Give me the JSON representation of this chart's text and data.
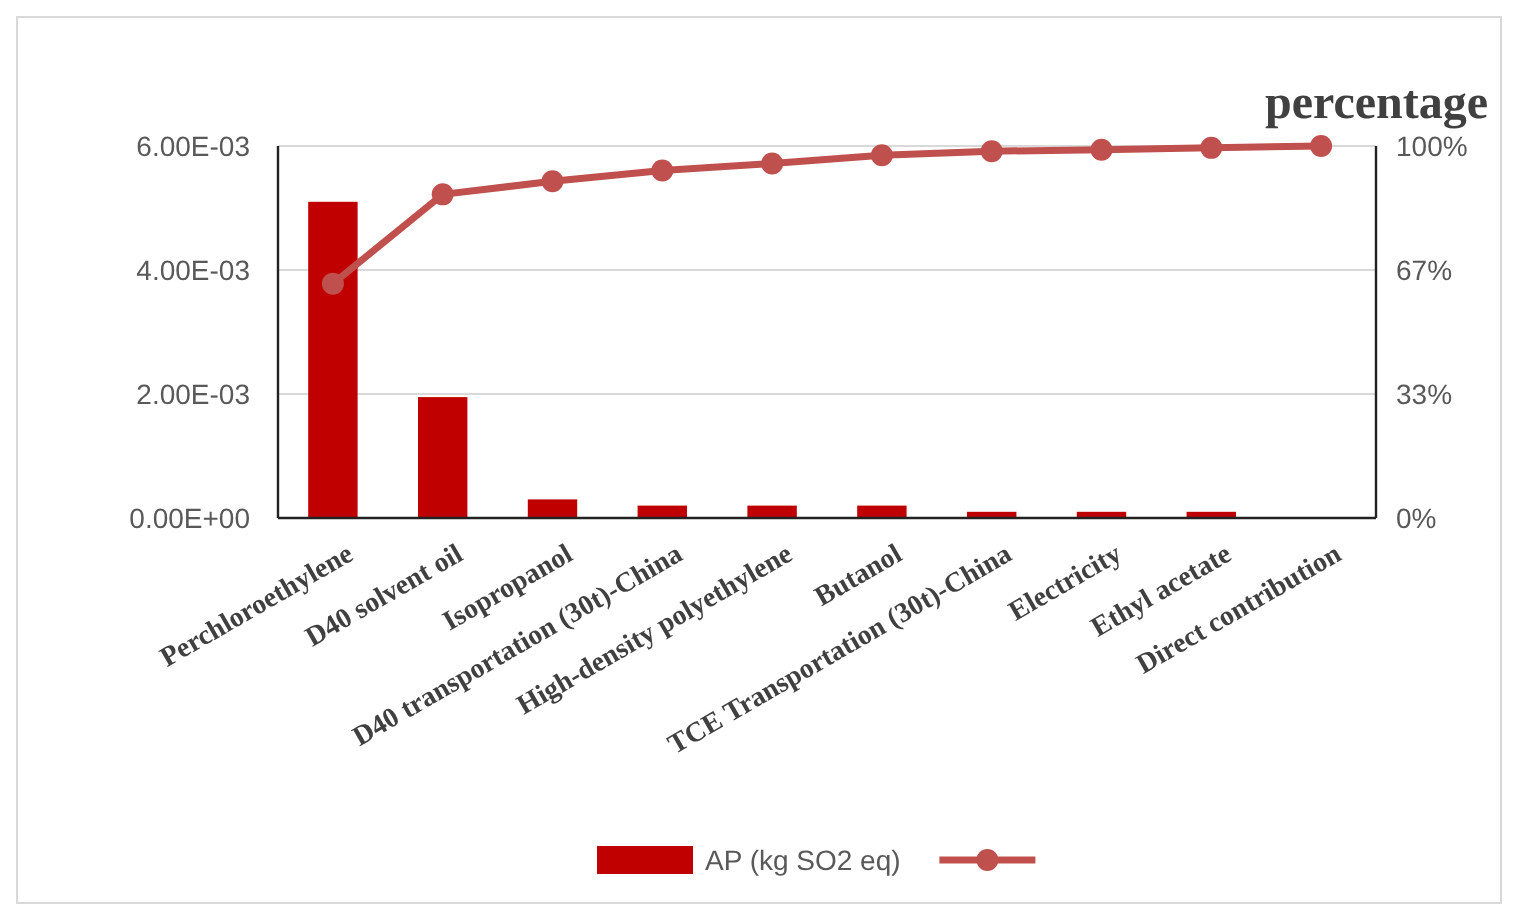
{
  "chart_data": {
    "type": "bar",
    "y2label": "percentage",
    "categories": [
      "Perchloroethylene",
      "D40 solvent oil",
      "Isopropanol",
      "D40 transportation (30t)-China",
      "High-density polyethylene",
      "Butanol",
      "TCE Transportation (30t)-China",
      "Electricity",
      "Ethyl acetate",
      "Direct contribution"
    ],
    "series": [
      {
        "name": "AP (kg SO2 eq)",
        "color": "#c00000",
        "values": [
          0.0051,
          0.00195,
          0.0003,
          0.0002,
          0.0002,
          0.0002,
          0.0001,
          0.0001,
          0.0001,
          0
        ]
      },
      {
        "type": "line",
        "axis": "y2",
        "color": "#c0504d",
        "marker": "circle",
        "values": [
          63,
          87,
          90.5,
          93.4,
          95.3,
          97.5,
          98.6,
          99,
          99.5,
          100
        ]
      }
    ],
    "ylim": [
      0,
      0.006
    ],
    "yticks": [
      {
        "value": 0,
        "label": "0.00E+00"
      },
      {
        "value": 0.002,
        "label": "2.00E-03"
      },
      {
        "value": 0.004,
        "label": "4.00E-03"
      },
      {
        "value": 0.006,
        "label": "6.00E-03"
      }
    ],
    "y2lim": [
      0,
      100
    ],
    "y2ticks": [
      {
        "value": 0,
        "label": "0%"
      },
      {
        "value": 33.33,
        "label": "33%"
      },
      {
        "value": 66.67,
        "label": "67%"
      },
      {
        "value": 100,
        "label": "100%"
      }
    ],
    "grid": "y",
    "legend": "bottom"
  }
}
